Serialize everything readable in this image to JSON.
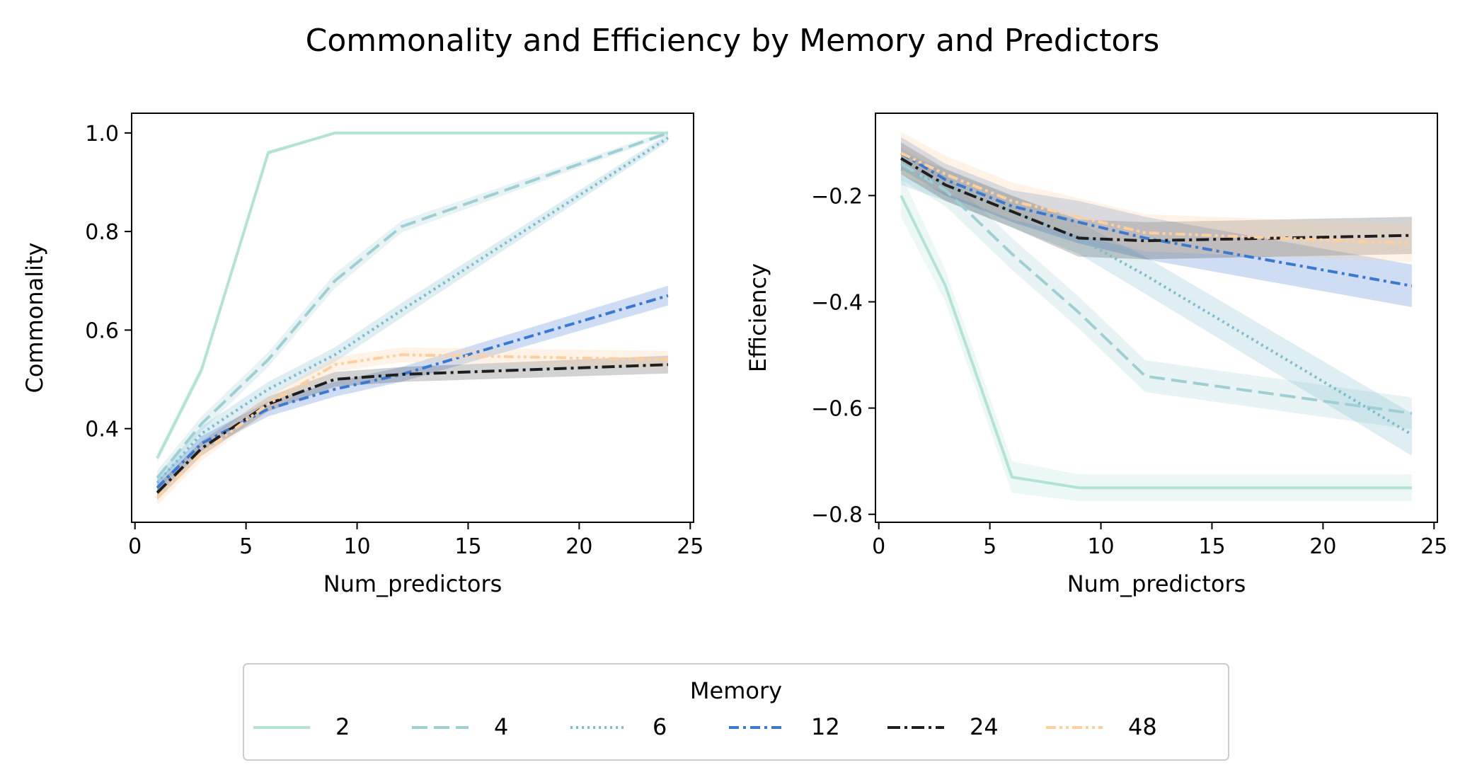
{
  "figure": {
    "title": "Commonality and Efficiency by Memory and Predictors"
  },
  "legend": {
    "title": "Memory",
    "placement": "bottom-center"
  },
  "chart_data": [
    {
      "type": "line",
      "xlabel": "Num_predictors",
      "ylabel": "Commonality",
      "xlim": [
        -0.15,
        25.15
      ],
      "ylim": [
        0.21,
        1.04
      ],
      "xticks": [
        0,
        5,
        10,
        15,
        20,
        25
      ],
      "yticks": [
        0.4,
        0.6,
        0.8,
        1.0
      ],
      "ytick_labels": [
        "0.4",
        "0.6",
        "0.8",
        "1.0"
      ],
      "x": [
        1,
        3,
        6,
        9,
        12,
        24
      ],
      "series": [
        {
          "name": "2",
          "color": "#b3e3d6",
          "dash": "solid",
          "values": [
            0.34,
            0.52,
            0.96,
            1.0,
            1.0,
            1.0
          ],
          "ci": [
            0.01,
            0.01,
            0.005,
            0.0,
            0.0,
            0.0
          ]
        },
        {
          "name": "4",
          "color": "#9fcfd2",
          "dash": "dashed",
          "values": [
            0.3,
            0.41,
            0.54,
            0.7,
            0.81,
            1.0
          ],
          "ci": [
            0.015,
            0.015,
            0.015,
            0.015,
            0.012,
            0.005
          ]
        },
        {
          "name": "6",
          "color": "#7dbccc",
          "dash": "dotted",
          "values": [
            0.29,
            0.39,
            0.48,
            0.55,
            0.64,
            0.99
          ],
          "ci": [
            0.015,
            0.015,
            0.015,
            0.015,
            0.015,
            0.008
          ]
        },
        {
          "name": "12",
          "color": "#3a78d1",
          "dash": "dashdot1",
          "values": [
            0.28,
            0.37,
            0.44,
            0.48,
            0.51,
            0.67
          ],
          "ci": [
            0.015,
            0.015,
            0.015,
            0.015,
            0.015,
            0.02
          ]
        },
        {
          "name": "24",
          "color": "#1e1e1e",
          "dash": "dashdot2",
          "values": [
            0.27,
            0.36,
            0.45,
            0.5,
            0.51,
            0.53
          ],
          "ci": [
            0.015,
            0.015,
            0.015,
            0.015,
            0.015,
            0.018
          ]
        },
        {
          "name": "48",
          "color": "#ffcf9e",
          "dash": "dashdot3",
          "values": [
            0.26,
            0.35,
            0.45,
            0.53,
            0.55,
            0.54
          ],
          "ci": [
            0.015,
            0.015,
            0.015,
            0.015,
            0.015,
            0.018
          ]
        }
      ]
    },
    {
      "type": "line",
      "xlabel": "Num_predictors",
      "ylabel": "Efficiency",
      "xlim": [
        -0.15,
        25.15
      ],
      "ylim": [
        -0.815,
        -0.045
      ],
      "xticks": [
        0,
        5,
        10,
        15,
        20,
        25
      ],
      "yticks": [
        -0.8,
        -0.6,
        -0.4,
        -0.2
      ],
      "ytick_labels": [
        "−0.8",
        "−0.6",
        "−0.4",
        "−0.2"
      ],
      "x": [
        1,
        3,
        6,
        9,
        12,
        24
      ],
      "series": [
        {
          "name": "2",
          "color": "#b3e3d6",
          "dash": "solid",
          "values": [
            -0.2,
            -0.37,
            -0.73,
            -0.75,
            -0.75,
            -0.75
          ],
          "ci": [
            0.04,
            0.03,
            0.03,
            0.025,
            0.025,
            0.025
          ]
        },
        {
          "name": "4",
          "color": "#9fcfd2",
          "dash": "dashed",
          "values": [
            -0.14,
            -0.19,
            -0.31,
            -0.42,
            -0.54,
            -0.61
          ],
          "ci": [
            0.03,
            0.03,
            0.03,
            0.03,
            0.03,
            0.03
          ]
        },
        {
          "name": "6",
          "color": "#7dbccc",
          "dash": "dotted",
          "values": [
            -0.15,
            -0.18,
            -0.23,
            -0.28,
            -0.35,
            -0.65
          ],
          "ci": [
            0.03,
            0.03,
            0.03,
            0.03,
            0.035,
            0.04
          ]
        },
        {
          "name": "12",
          "color": "#3a78d1",
          "dash": "dashdot1",
          "values": [
            -0.12,
            -0.17,
            -0.22,
            -0.25,
            -0.28,
            -0.37
          ],
          "ci": [
            0.03,
            0.03,
            0.03,
            0.04,
            0.04,
            0.04
          ]
        },
        {
          "name": "24",
          "color": "#1e1e1e",
          "dash": "dashdot2",
          "values": [
            -0.13,
            -0.18,
            -0.23,
            -0.28,
            -0.285,
            -0.275
          ],
          "ci": [
            0.03,
            0.03,
            0.03,
            0.035,
            0.035,
            0.035
          ]
        },
        {
          "name": "48",
          "color": "#ffcf9e",
          "dash": "dashdot3",
          "values": [
            -0.12,
            -0.16,
            -0.21,
            -0.24,
            -0.27,
            -0.29
          ],
          "ci": [
            0.04,
            0.035,
            0.035,
            0.035,
            0.035,
            0.035
          ]
        }
      ]
    }
  ]
}
